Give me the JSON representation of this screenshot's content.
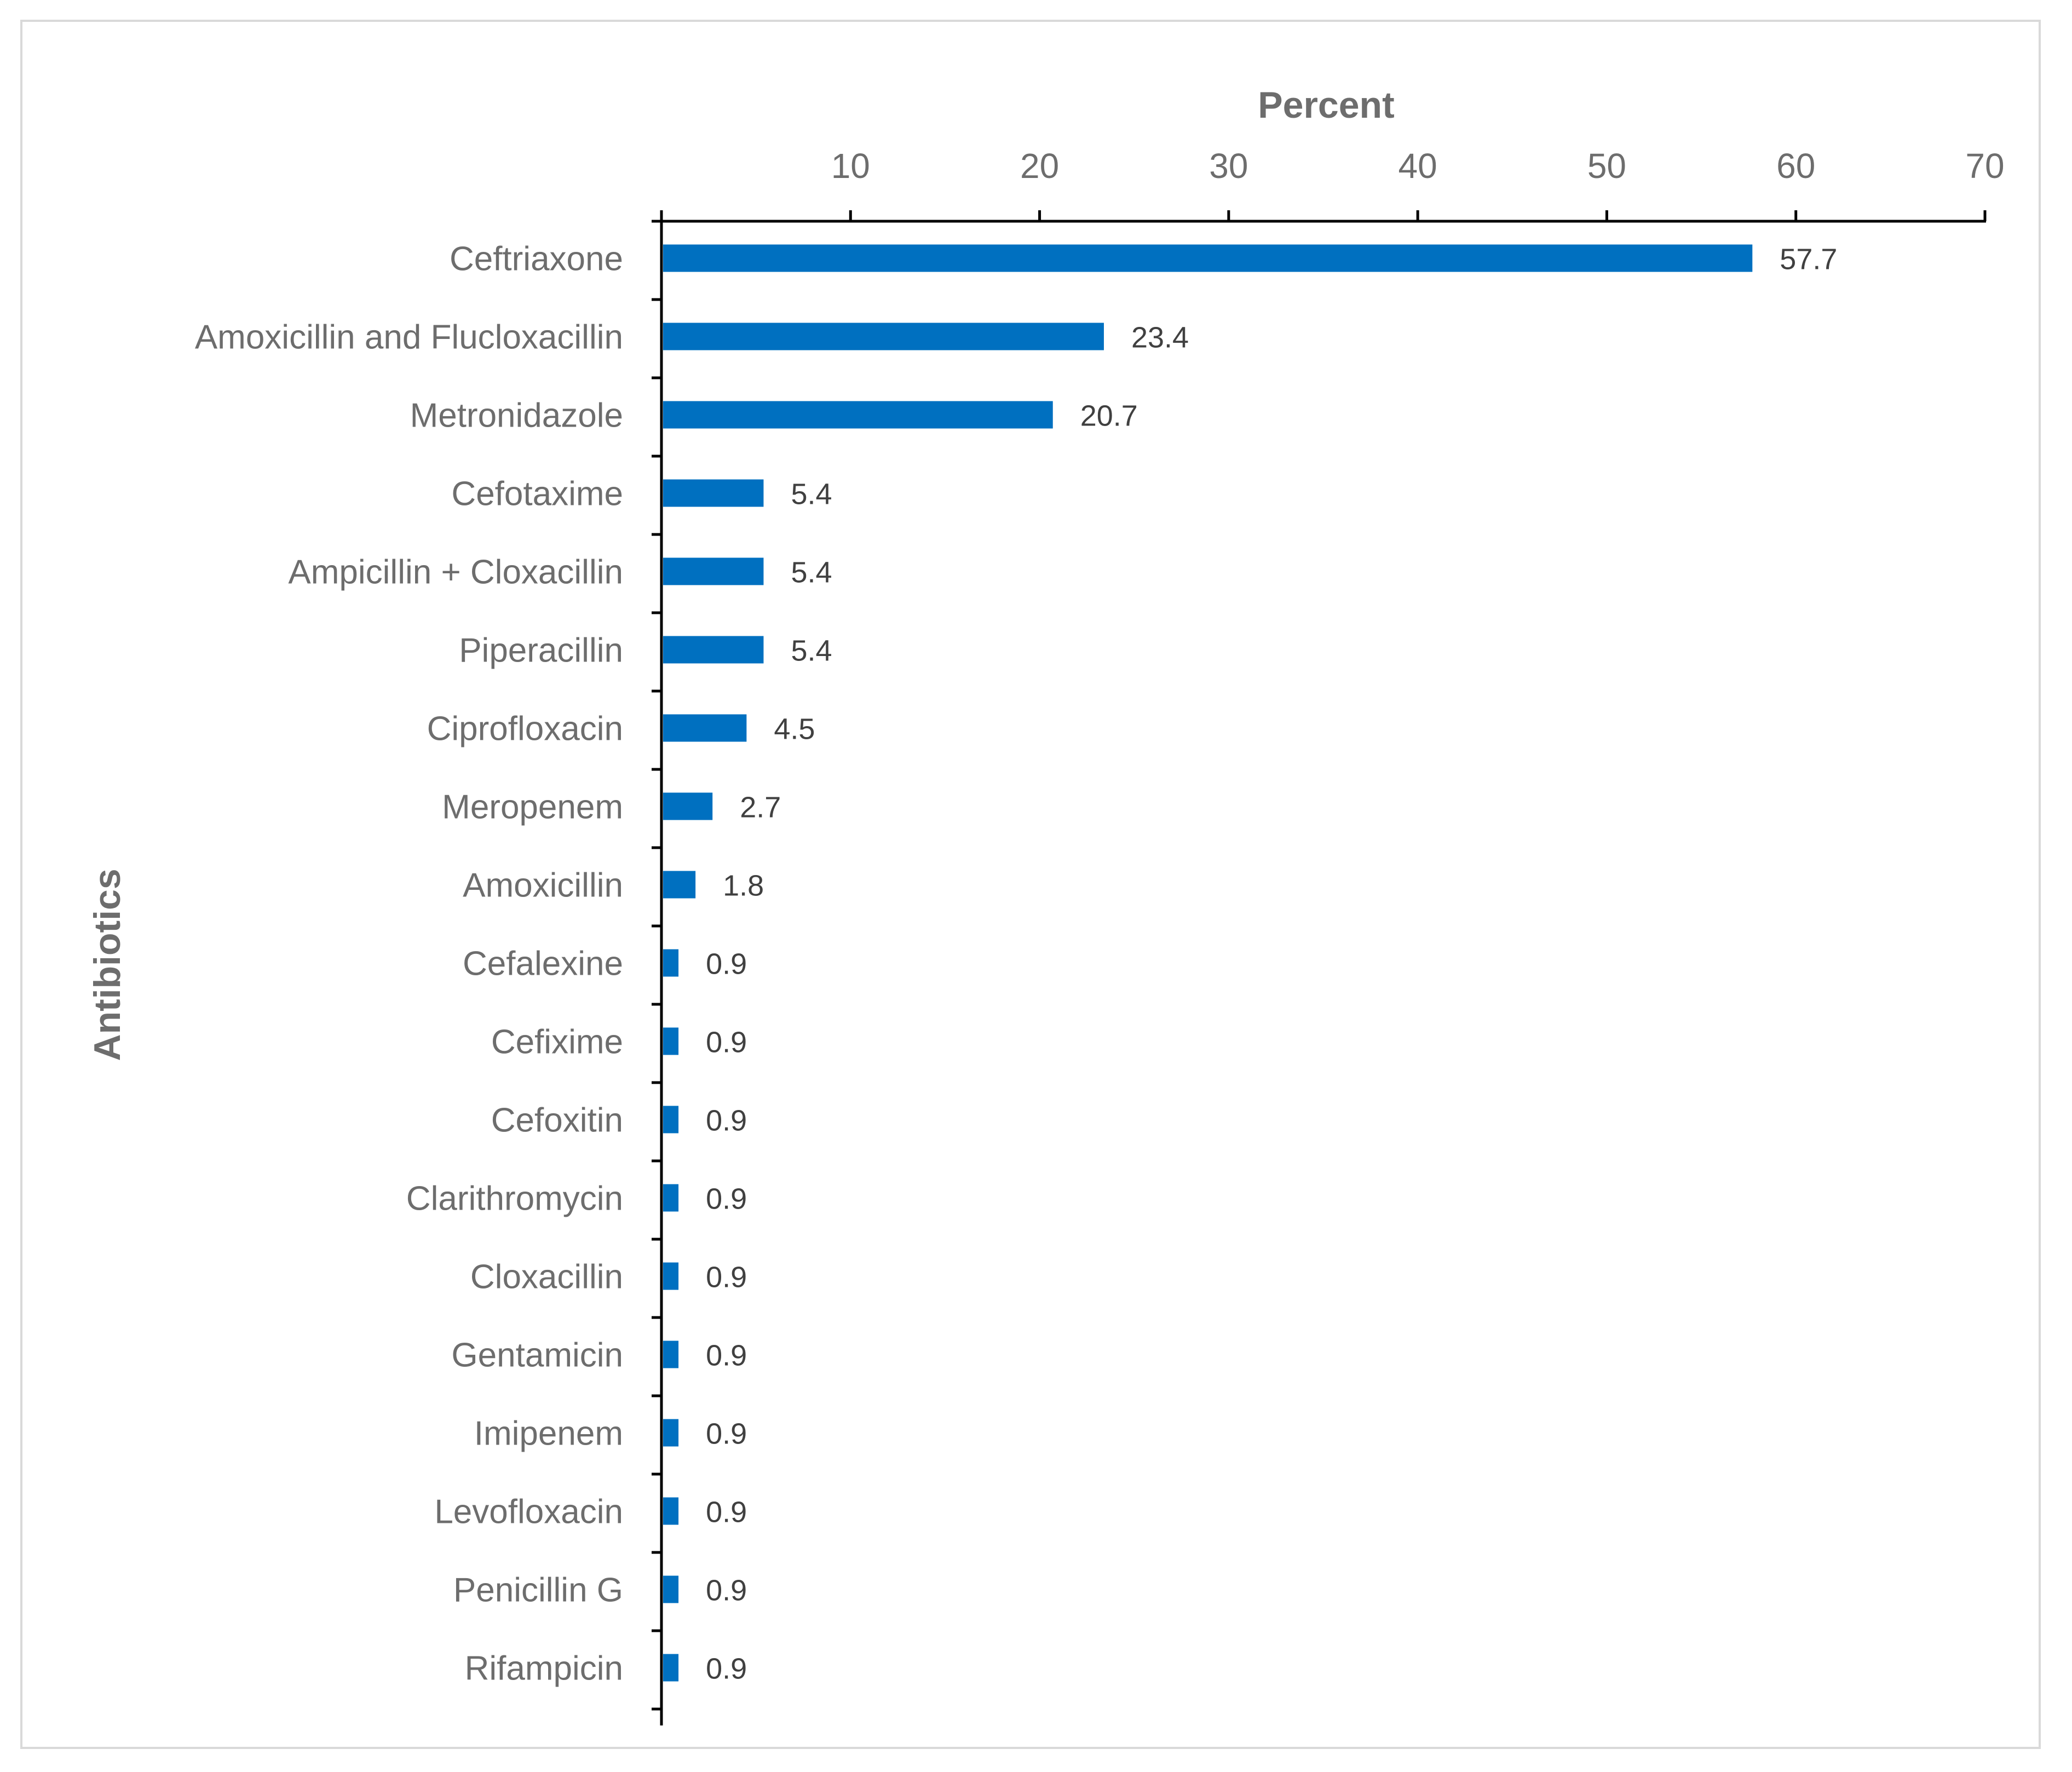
{
  "chart_data": {
    "type": "bar",
    "orientation": "horizontal",
    "title": "",
    "xlabel": "Percent",
    "ylabel": "Antibiotics",
    "xlim": [
      0,
      70
    ],
    "x_ticks": [
      10,
      20,
      30,
      40,
      50,
      60,
      70
    ],
    "x_axis_position": "top",
    "grid": false,
    "legend": "none",
    "categories": [
      "Ceftriaxone",
      "Amoxicillin and Flucloxacillin",
      "Metronidazole",
      "Cefotaxime",
      "Ampicillin + Cloxacillin",
      "Piperacillin",
      "Ciprofloxacin",
      "Meropenem",
      "Amoxicillin",
      "Cefalexine",
      "Cefixime",
      "Cefoxitin",
      "Clarithromycin",
      "Cloxacillin",
      "Gentamicin",
      "Imipenem",
      "Levofloxacin",
      "Penicillin G",
      "Rifampicin"
    ],
    "values": [
      57.7,
      23.4,
      20.7,
      5.4,
      5.4,
      5.4,
      4.5,
      2.7,
      1.8,
      0.9,
      0.9,
      0.9,
      0.9,
      0.9,
      0.9,
      0.9,
      0.9,
      0.9,
      0.9
    ],
    "data_labels": [
      "57.7",
      "23.4",
      "20.7",
      "5.4",
      "5.4",
      "5.4",
      "4.5",
      "2.7",
      "1.8",
      "0.9",
      "0.9",
      "0.9",
      "0.9",
      "0.9",
      "0.9",
      "0.9",
      "0.9",
      "0.9",
      "0.9"
    ],
    "bar_color": "#0070c0",
    "axis_color": "#000000",
    "text_color": "#6d6d6d",
    "label_color": "#404040"
  }
}
